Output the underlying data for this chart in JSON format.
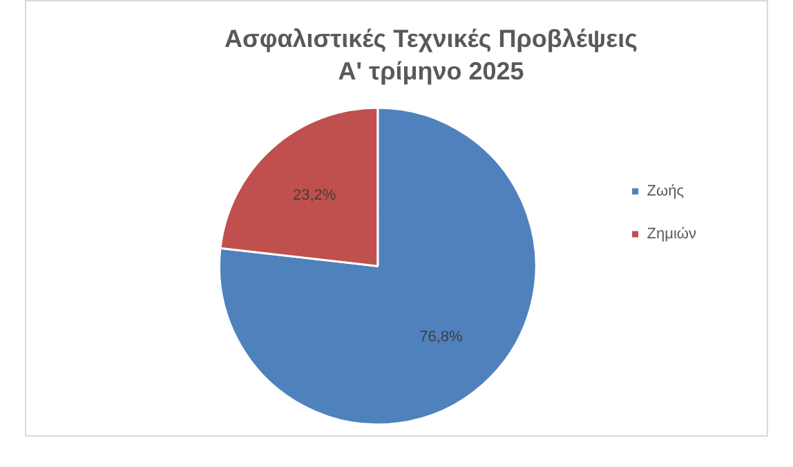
{
  "chart_data": {
    "type": "pie",
    "title": "Ασφαλιστικές Τεχνικές Προβλέψεις",
    "subtitle": "Α' τρίμηνο 2025",
    "categories": [
      "Ζωής",
      "Ζημιών"
    ],
    "values": [
      76.8,
      23.2
    ],
    "colors": [
      "#4f81bd",
      "#c0504d"
    ],
    "value_labels": [
      "76,8%",
      "23,2%"
    ],
    "legend": "right"
  }
}
